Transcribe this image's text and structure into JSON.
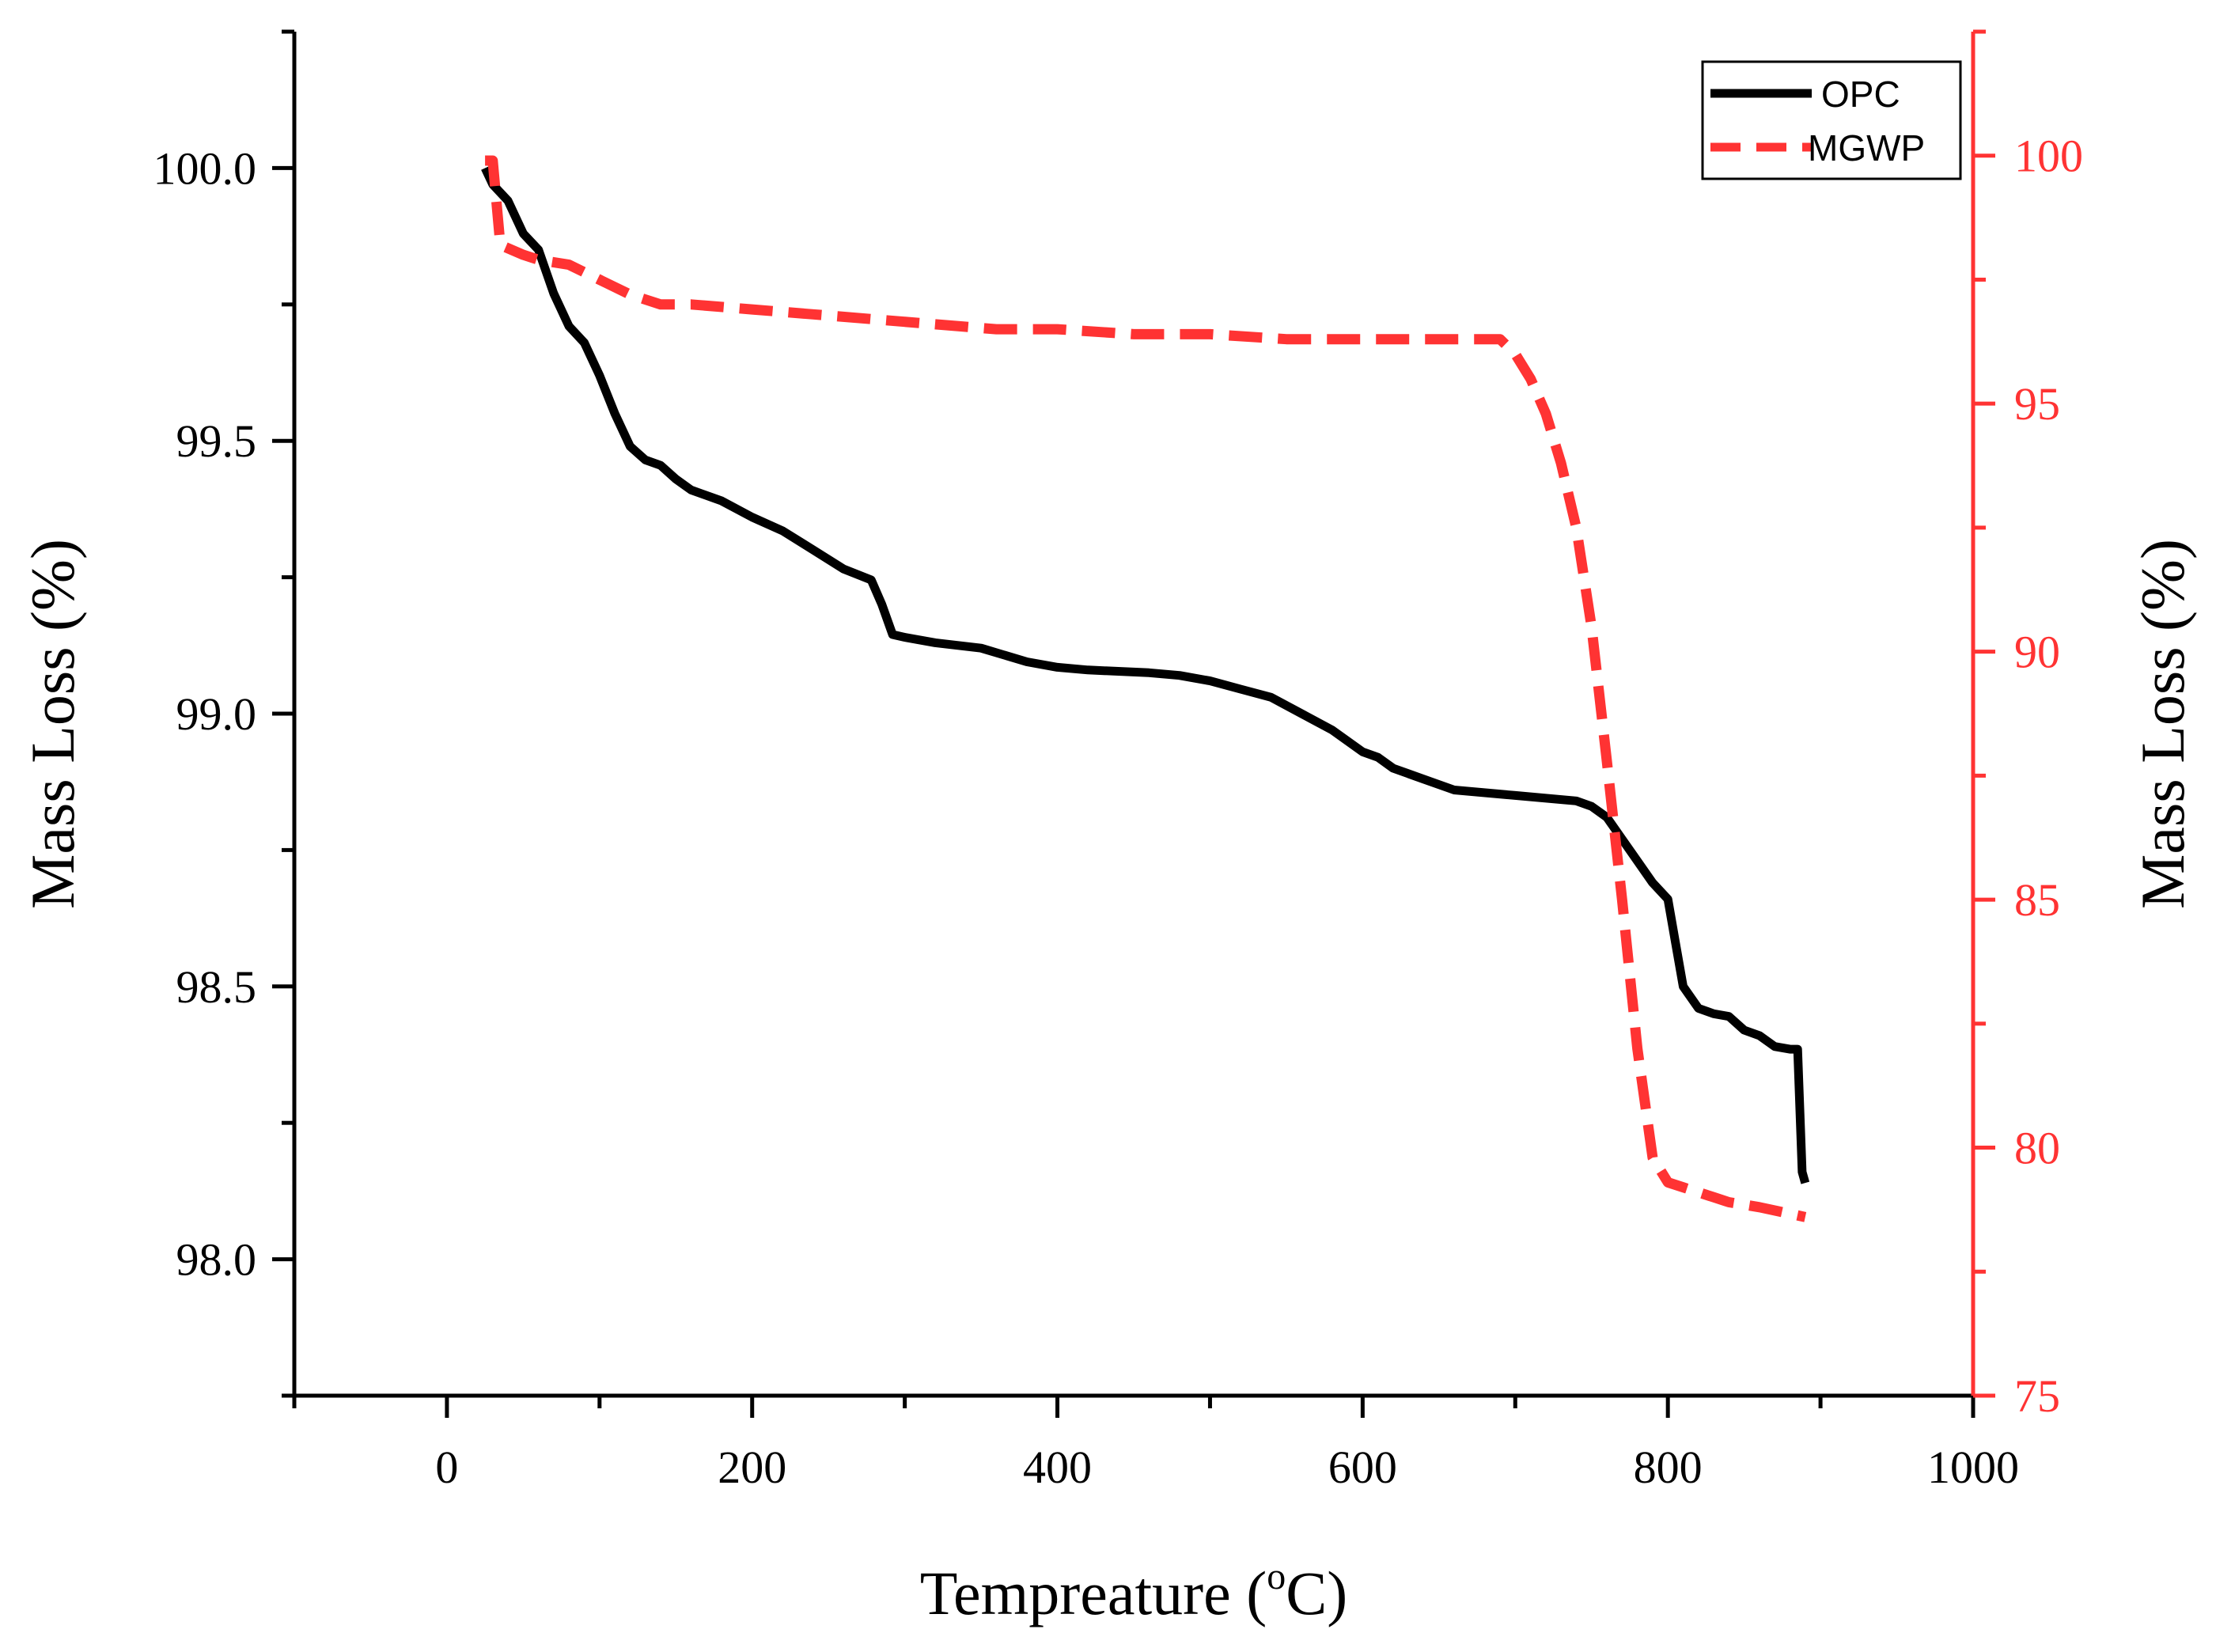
{
  "chart_data": {
    "type": "line",
    "title": "",
    "xlabel": "Tempreature (",
    "xlabel_sup": "o",
    "xlabel_unit": "C)",
    "ylabel_left": "Mass Loss (%)",
    "ylabel_right": "Mass Loss (%)",
    "xlim": [
      -100,
      1000
    ],
    "ylim_left": [
      97.75,
      100.25
    ],
    "ylim_right": [
      75,
      102.5
    ],
    "x_ticks": [
      0,
      200,
      400,
      600,
      800,
      1000
    ],
    "x_tick_labels": [
      "0",
      "200",
      "400",
      "600",
      "800",
      "1000"
    ],
    "y_left_ticks": [
      98.0,
      98.5,
      99.0,
      99.5,
      100.0
    ],
    "y_left_tick_labels": [
      "98.0",
      "98.5",
      "99.0",
      "99.5",
      "100.0"
    ],
    "y_right_ticks": [
      75,
      80,
      85,
      90,
      95,
      100
    ],
    "y_right_tick_labels": [
      "75",
      "80",
      "85",
      "90",
      "95",
      "100"
    ],
    "legend_position": "top-right",
    "grid": false,
    "colors": {
      "opc": "#000000",
      "mgwp": "#ff3333",
      "right_axis": "#ff3333",
      "left_axis": "#000000"
    },
    "series": [
      {
        "name": "OPC",
        "axis": "left",
        "style": "solid",
        "x": [
          25,
          30,
          40,
          50,
          60,
          70,
          80,
          90,
          100,
          110,
          120,
          130,
          140,
          150,
          160,
          180,
          200,
          220,
          240,
          260,
          278,
          285,
          292,
          300,
          320,
          350,
          380,
          400,
          420,
          460,
          480,
          500,
          520,
          540,
          560,
          580,
          600,
          610,
          620,
          640,
          660,
          700,
          740,
          750,
          760,
          770,
          780,
          790,
          800,
          805,
          810,
          820,
          830,
          840,
          850,
          860,
          870,
          880,
          885,
          888,
          890
        ],
        "y": [
          100.0,
          99.97,
          99.94,
          99.88,
          99.85,
          99.77,
          99.71,
          99.68,
          99.62,
          99.55,
          99.49,
          99.465,
          99.455,
          99.43,
          99.41,
          99.39,
          99.36,
          99.335,
          99.3,
          99.265,
          99.245,
          99.2,
          99.145,
          99.14,
          99.13,
          99.12,
          99.095,
          99.085,
          99.08,
          99.075,
          99.07,
          99.06,
          99.045,
          99.03,
          99.0,
          98.97,
          98.93,
          98.92,
          98.9,
          98.88,
          98.86,
          98.85,
          98.84,
          98.83,
          98.81,
          98.77,
          98.73,
          98.69,
          98.66,
          98.58,
          98.5,
          98.46,
          98.45,
          98.445,
          98.42,
          98.41,
          98.39,
          98.385,
          98.385,
          98.16,
          98.14
        ]
      },
      {
        "name": "MGWP",
        "axis": "right",
        "style": "dashed",
        "x": [
          25,
          30,
          35,
          50,
          60,
          80,
          100,
          120,
          140,
          160,
          200,
          240,
          280,
          320,
          360,
          400,
          450,
          500,
          550,
          600,
          650,
          690,
          700,
          710,
          720,
          730,
          740,
          750,
          760,
          770,
          780,
          790,
          800,
          810,
          820,
          830,
          840,
          860,
          890
        ],
        "y": [
          99.9,
          99.9,
          98.2,
          98.0,
          97.9,
          97.8,
          97.5,
          97.2,
          97.0,
          97.0,
          96.9,
          96.8,
          96.7,
          96.6,
          96.5,
          96.5,
          96.4,
          96.4,
          96.3,
          96.3,
          96.3,
          96.3,
          96.0,
          95.5,
          94.8,
          93.8,
          92.5,
          90.5,
          87.8,
          85.0,
          82.0,
          79.8,
          79.3,
          79.2,
          79.1,
          79.0,
          78.9,
          78.8,
          78.6
        ]
      }
    ]
  }
}
